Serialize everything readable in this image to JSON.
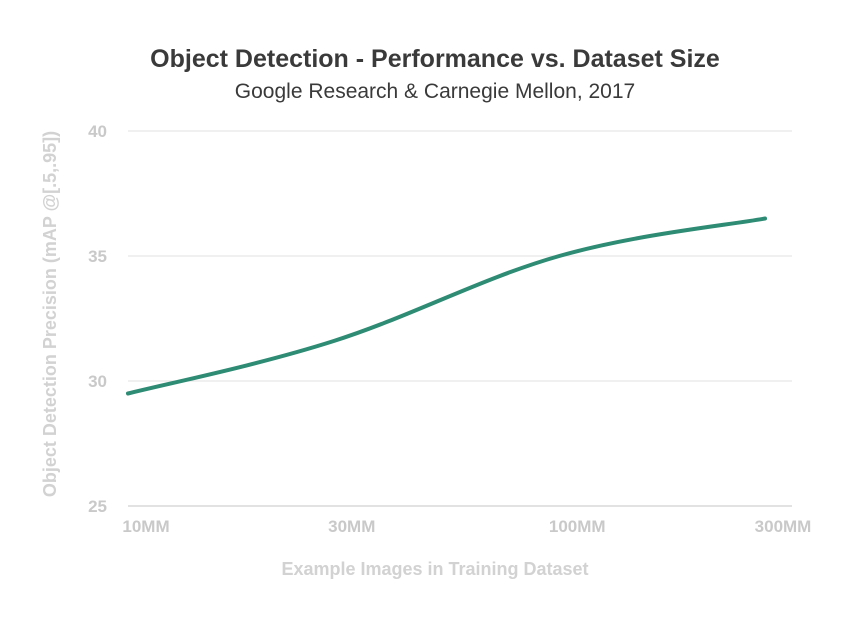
{
  "chart_data": {
    "type": "line",
    "title": "Object Detection - Performance vs. Dataset Size",
    "subtitle": "Google Research & Carnegie Mellon, 2017",
    "xlabel": "Example Images in Training Dataset",
    "ylabel": "Object Detection Precision (mAP @[.5,.95])",
    "x_scale": "log",
    "x_ticks": [
      {
        "value": 10,
        "label": "10MM"
      },
      {
        "value": 30,
        "label": "30MM"
      },
      {
        "value": 100,
        "label": "100MM"
      },
      {
        "value": 300,
        "label": "300MM"
      }
    ],
    "y_ticks": [
      25,
      30,
      35,
      40
    ],
    "ylim": [
      25,
      40
    ],
    "xlim": [
      10,
      300
    ],
    "grid": true,
    "series": [
      {
        "name": "mAP",
        "color": "#2e8b74",
        "x": [
          10,
          30,
          100,
          300
        ],
        "values": [
          29.5,
          31.6,
          35.0,
          36.5
        ]
      }
    ]
  }
}
